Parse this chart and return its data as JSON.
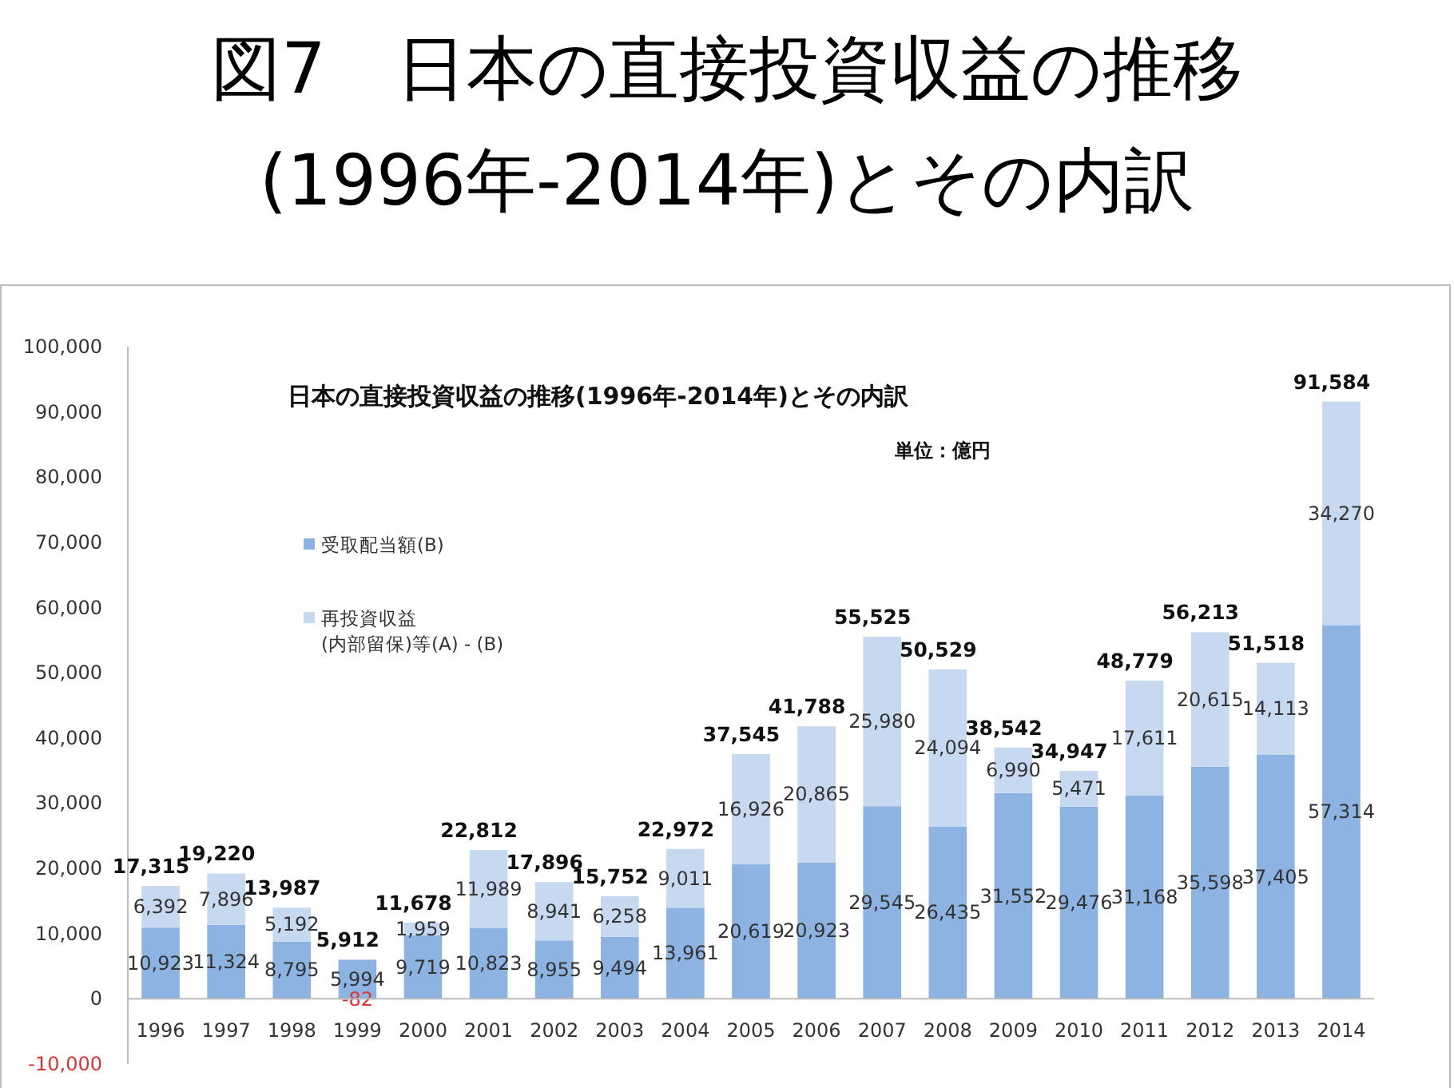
{
  "chart_data": {
    "type": "bar",
    "stacked": true,
    "title": "図7　日本の直接投資収益の推移\n(1996年-2014年)とその内訳",
    "subtitle": "日本の直接投資収益の推移(1996年-2014年)とその内訳",
    "annotations": [
      "単位：億円"
    ],
    "categories": [
      "1996",
      "1997",
      "1998",
      "1999",
      "2000",
      "2001",
      "2002",
      "2003",
      "2004",
      "2005",
      "2006",
      "2007",
      "2008",
      "2009",
      "2010",
      "2011",
      "2012",
      "2013",
      "2014"
    ],
    "series": [
      {
        "name": "受取配当額(B)",
        "color": "#8db3e2",
        "values": [
          10923,
          11324,
          8795,
          5994,
          9719,
          10823,
          8955,
          9494,
          13961,
          20619,
          20923,
          29545,
          26435,
          31552,
          29476,
          31168,
          35598,
          37405,
          57314
        ],
        "value_labels": [
          "10,923",
          "11,324",
          "8,795",
          "5,994",
          "9,719",
          "10,823",
          "8,955",
          "9,494",
          "13,961",
          "20,619",
          "20,923",
          "29,545",
          "26,435",
          "31,552",
          "29,476",
          "31,168",
          "35,598",
          "37,405",
          "57,314"
        ]
      },
      {
        "name": "再投資収益\n(内部留保)等(A) - (B)",
        "color": "#c6d9f1",
        "values": [
          6392,
          7896,
          5192,
          -82,
          1959,
          11989,
          8941,
          6258,
          9011,
          16926,
          20865,
          25980,
          24094,
          6990,
          5471,
          17611,
          20615,
          14113,
          34270
        ],
        "value_labels": [
          "6,392",
          "7,896",
          "5,192",
          "-82",
          "1,959",
          "11,989",
          "8,941",
          "6,258",
          "9,011",
          "16,926",
          "20,865",
          "25,980",
          "24,094",
          "6,990",
          "5,471",
          "17,611",
          "20,615",
          "14,113",
          "34,270"
        ]
      }
    ],
    "totals": [
      "17,315",
      "19,220",
      "13,987",
      "5,912",
      "11,678",
      "22,812",
      "17,896",
      "15,752",
      "22,972",
      "37,545",
      "41,788",
      "55,525",
      "50,529",
      "38,542",
      "34,947",
      "48,779",
      "56,213",
      "51,518",
      "91,584"
    ],
    "legend": "top left",
    "grid": false,
    "ylim": [
      -10000,
      100000
    ],
    "yticks": [
      {
        "value": -10000,
        "label": "-10,000"
      },
      {
        "value": 0,
        "label": "0"
      },
      {
        "value": 10000,
        "label": "10,000"
      },
      {
        "value": 20000,
        "label": "20,000"
      },
      {
        "value": 30000,
        "label": "30,000"
      },
      {
        "value": 40000,
        "label": "40,000"
      },
      {
        "value": 50000,
        "label": "50,000"
      },
      {
        "value": 60000,
        "label": "60,000"
      },
      {
        "value": 70000,
        "label": "70,000"
      },
      {
        "value": 80000,
        "label": "80,000"
      },
      {
        "value": 90000,
        "label": "90,000"
      },
      {
        "value": 100000,
        "label": "100,000"
      }
    ]
  }
}
